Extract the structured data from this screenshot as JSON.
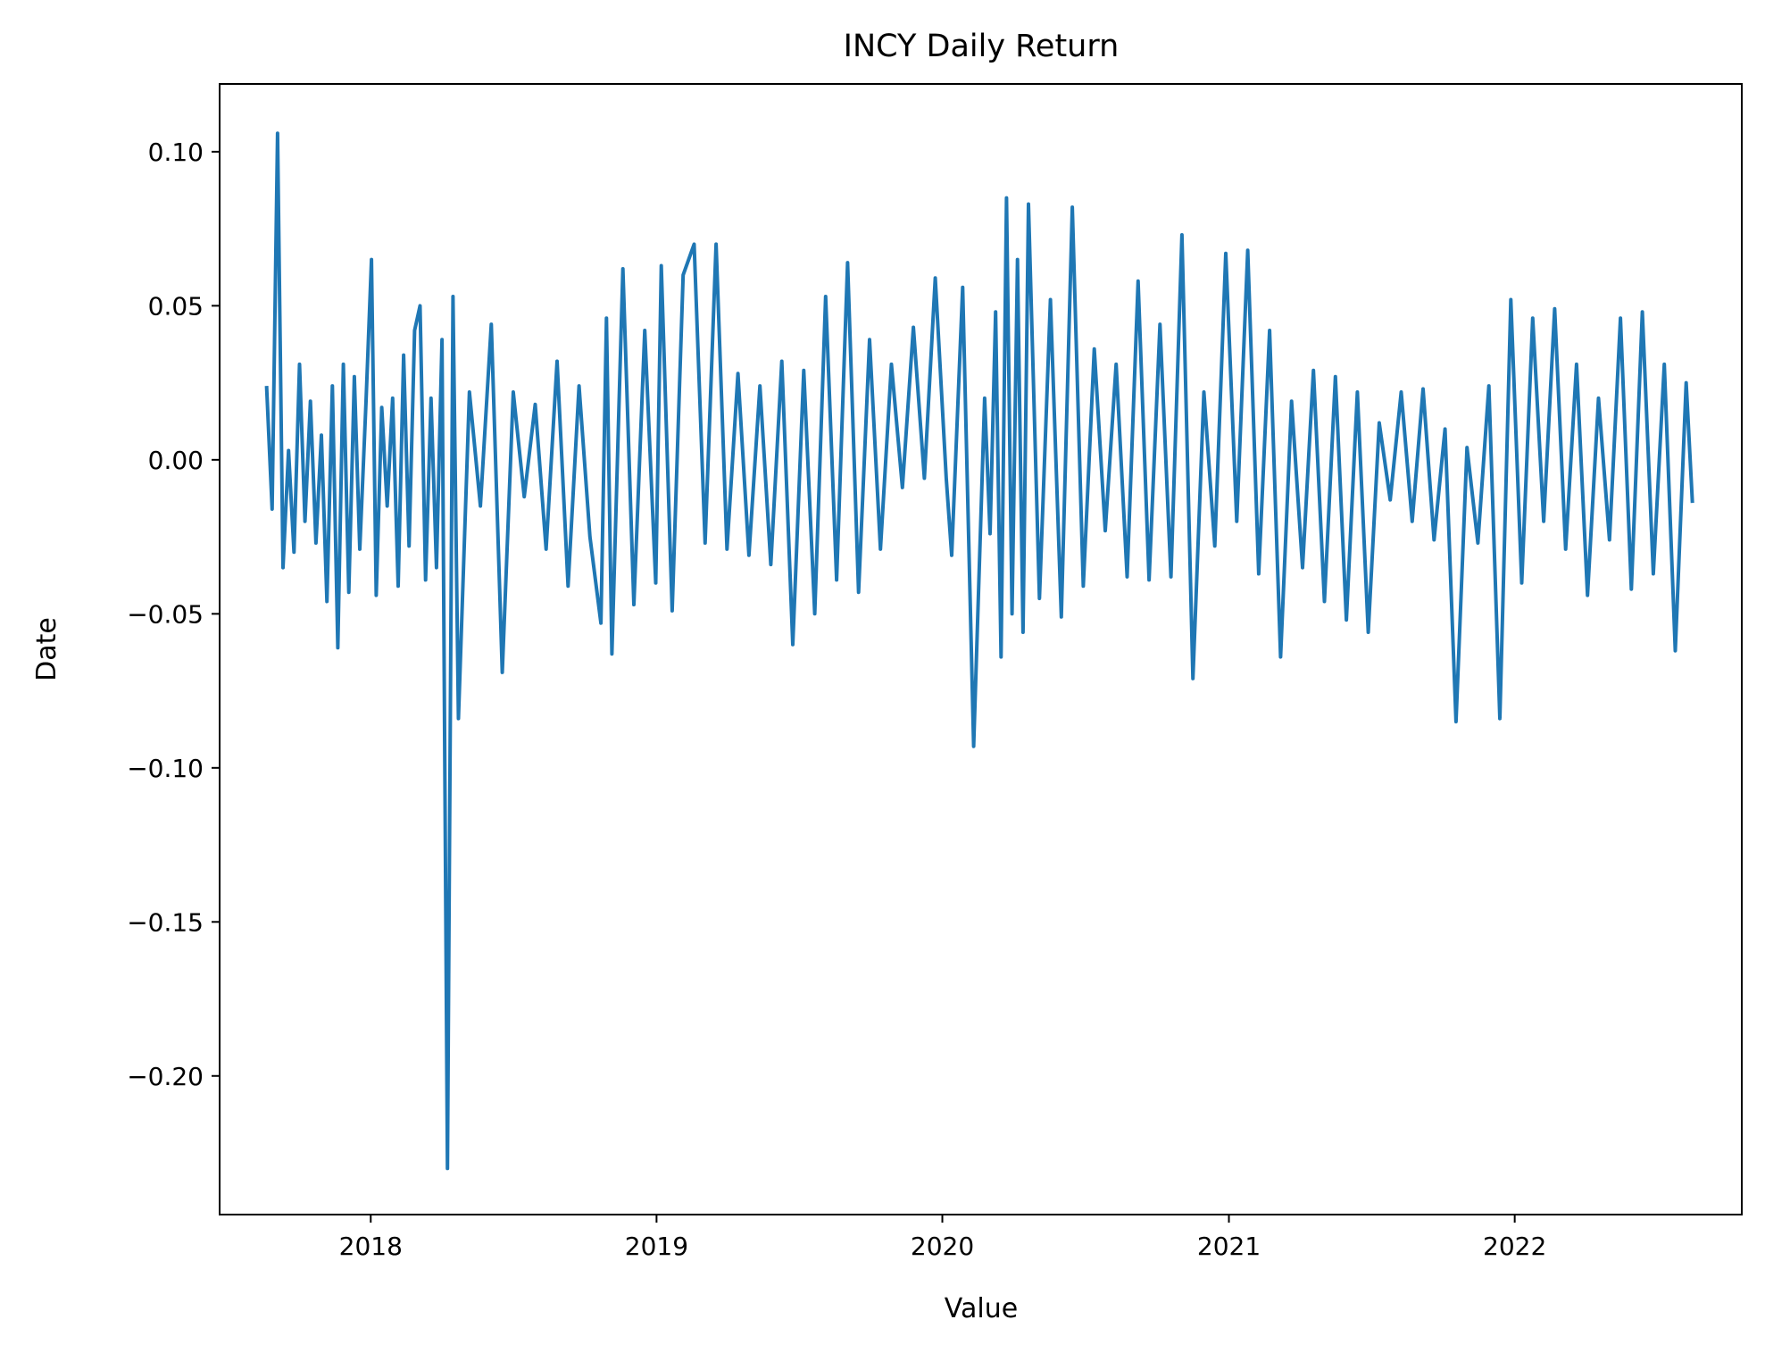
{
  "chart_data": {
    "type": "line",
    "title": "INCY Daily Return",
    "xlabel": "Value",
    "ylabel": "Date",
    "x_ticks": [
      "2018",
      "2019",
      "2020",
      "2021",
      "2022"
    ],
    "y_ticks": [
      "0.10",
      "0.05",
      "0.00",
      "−0.05",
      "−0.10",
      "−0.15",
      "−0.20"
    ],
    "xlim": [
      "2017-06-22",
      "2022-10-18"
    ],
    "ylim": [
      -0.245,
      0.122
    ],
    "grid": false,
    "legend": "none",
    "colors": {
      "line": "#1f77b4",
      "axes": "#000000",
      "background": "#ffffff"
    },
    "series": [
      {
        "x": [
          "2017-08-21",
          "2017-08-28",
          "2017-09-04",
          "2017-09-11",
          "2017-09-18",
          "2017-09-25",
          "2017-10-02",
          "2017-10-09",
          "2017-10-16",
          "2017-10-23",
          "2017-10-30",
          "2017-11-06",
          "2017-11-13",
          "2017-11-20",
          "2017-11-27",
          "2017-12-04",
          "2017-12-11",
          "2017-12-18",
          "2017-12-26",
          "2018-01-02",
          "2018-01-08",
          "2018-01-15",
          "2018-01-22",
          "2018-01-29",
          "2018-02-05",
          "2018-02-12",
          "2018-02-19",
          "2018-02-26",
          "2018-03-05",
          "2018-03-12",
          "2018-03-19",
          "2018-03-26",
          "2018-04-02",
          "2018-04-09",
          "2018-04-16",
          "2018-04-23",
          "2018-05-07",
          "2018-05-21",
          "2018-06-04",
          "2018-06-18",
          "2018-07-02",
          "2018-07-16",
          "2018-07-30",
          "2018-08-13",
          "2018-08-27",
          "2018-09-10",
          "2018-09-24",
          "2018-10-08",
          "2018-10-22",
          "2018-10-29",
          "2018-11-05",
          "2018-11-19",
          "2018-12-03",
          "2018-12-17",
          "2018-12-31",
          "2019-01-07",
          "2019-01-21",
          "2019-02-04",
          "2019-02-18",
          "2019-03-04",
          "2019-03-18",
          "2019-04-01",
          "2019-04-15",
          "2019-04-29",
          "2019-05-13",
          "2019-05-27",
          "2019-06-10",
          "2019-06-24",
          "2019-07-08",
          "2019-07-22",
          "2019-08-05",
          "2019-08-19",
          "2019-09-02",
          "2019-09-16",
          "2019-09-30",
          "2019-10-14",
          "2019-10-28",
          "2019-11-11",
          "2019-11-25",
          "2019-12-09",
          "2019-12-23",
          "2020-01-06",
          "2020-01-13",
          "2020-01-27",
          "2020-02-10",
          "2020-02-24",
          "2020-03-02",
          "2020-03-09",
          "2020-03-16",
          "2020-03-23",
          "2020-03-30",
          "2020-04-06",
          "2020-04-13",
          "2020-04-20",
          "2020-05-04",
          "2020-05-18",
          "2020-06-01",
          "2020-06-15",
          "2020-06-29",
          "2020-07-13",
          "2020-07-27",
          "2020-08-10",
          "2020-08-24",
          "2020-09-07",
          "2020-09-21",
          "2020-10-05",
          "2020-10-19",
          "2020-11-02",
          "2020-11-16",
          "2020-11-30",
          "2020-12-14",
          "2020-12-28",
          "2021-01-11",
          "2021-01-25",
          "2021-02-08",
          "2021-02-22",
          "2021-03-08",
          "2021-03-22",
          "2021-04-05",
          "2021-04-19",
          "2021-05-03",
          "2021-05-17",
          "2021-05-31",
          "2021-06-14",
          "2021-06-28",
          "2021-07-12",
          "2021-07-26",
          "2021-08-09",
          "2021-08-23",
          "2021-09-06",
          "2021-09-20",
          "2021-10-04",
          "2021-10-18",
          "2021-11-01",
          "2021-11-15",
          "2021-11-29",
          "2021-12-13",
          "2021-12-27",
          "2022-01-10",
          "2022-01-24",
          "2022-02-07",
          "2022-02-21",
          "2022-03-07",
          "2022-03-21",
          "2022-04-04",
          "2022-04-18",
          "2022-05-02",
          "2022-05-16",
          "2022-05-30",
          "2022-06-13",
          "2022-06-27",
          "2022-07-11",
          "2022-07-25",
          "2022-08-08",
          "2022-08-16"
        ],
        "values": [
          0.024,
          -0.016,
          0.106,
          -0.035,
          0.003,
          -0.03,
          0.031,
          -0.02,
          0.019,
          -0.027,
          0.008,
          -0.046,
          0.024,
          -0.061,
          0.031,
          -0.043,
          0.027,
          -0.029,
          0.019,
          0.065,
          -0.044,
          0.017,
          -0.015,
          0.02,
          -0.041,
          0.034,
          -0.028,
          0.042,
          0.05,
          -0.039,
          0.02,
          -0.035,
          0.039,
          -0.23,
          0.053,
          -0.084,
          0.022,
          -0.015,
          0.044,
          -0.069,
          0.022,
          -0.012,
          0.018,
          -0.029,
          0.032,
          -0.041,
          0.024,
          -0.025,
          -0.053,
          0.046,
          -0.063,
          0.062,
          -0.047,
          0.042,
          -0.04,
          0.063,
          -0.049,
          0.06,
          0.07,
          -0.027,
          0.07,
          -0.029,
          0.028,
          -0.031,
          0.024,
          -0.034,
          0.032,
          -0.06,
          0.029,
          -0.05,
          0.053,
          -0.039,
          0.064,
          -0.043,
          0.039,
          -0.029,
          0.031,
          -0.009,
          0.043,
          -0.006,
          0.059,
          -0.006,
          -0.031,
          0.056,
          -0.093,
          0.02,
          -0.024,
          0.048,
          -0.064,
          0.085,
          -0.05,
          0.065,
          -0.056,
          0.083,
          -0.045,
          0.052,
          -0.051,
          0.082,
          -0.041,
          0.036,
          -0.023,
          0.031,
          -0.038,
          0.058,
          -0.039,
          0.044,
          -0.038,
          0.073,
          -0.071,
          0.022,
          -0.028,
          0.067,
          -0.02,
          0.068,
          -0.037,
          0.042,
          -0.064,
          0.019,
          -0.035,
          0.029,
          -0.046,
          0.027,
          -0.052,
          0.022,
          -0.056,
          0.012,
          -0.013,
          0.022,
          -0.02,
          0.023,
          -0.026,
          0.01,
          -0.085,
          0.004,
          -0.027,
          0.024,
          -0.084,
          0.052,
          -0.04,
          0.046,
          -0.02,
          0.049,
          -0.029,
          0.031,
          -0.044,
          0.02,
          -0.026,
          0.046,
          -0.042,
          0.048,
          -0.037,
          0.031,
          -0.062,
          0.025,
          -0.014
        ]
      }
    ]
  }
}
